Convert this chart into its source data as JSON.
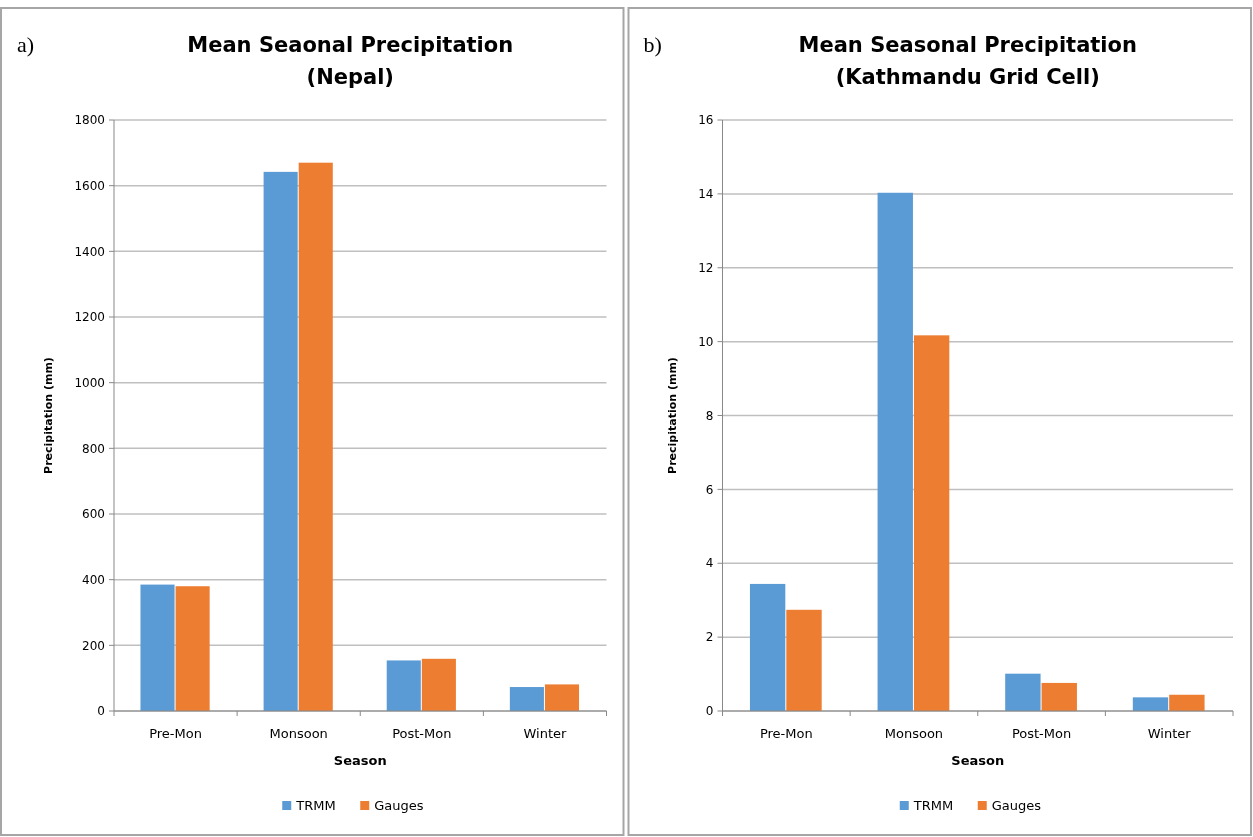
{
  "chart_data": [
    {
      "type": "bar",
      "title": "Mean Seaonal Precipitation\n(Nepal)",
      "xlabel": "Season",
      "ylabel": "Precipitation (mm)",
      "annotations": [
        "a)"
      ],
      "categories": [
        "Pre-Mon",
        "Monsoon",
        "Post-Mon",
        "Winter"
      ],
      "series": [
        {
          "name": "TRMM",
          "color": "#5b9bd5",
          "values": [
            385,
            1642,
            154,
            73
          ]
        },
        {
          "name": "Gauges",
          "color": "#ed7d31",
          "values": [
            380,
            1670,
            159,
            81
          ]
        }
      ],
      "ylim": [
        0,
        1800
      ],
      "yticks": [
        0,
        200,
        400,
        600,
        800,
        1000,
        1200,
        1400,
        1600,
        1800
      ],
      "grid": "y",
      "legend": "bottom"
    },
    {
      "type": "bar",
      "title": "Mean Seasonal Precipitation\n(Kathmandu Grid Cell)",
      "xlabel": "Season",
      "ylabel": "Precipitation (mm)",
      "annotations": [
        "b)"
      ],
      "categories": [
        "Pre-Mon",
        "Monsoon",
        "Post-Mon",
        "Winter"
      ],
      "series": [
        {
          "name": "TRMM",
          "color": "#5b9bd5",
          "values": [
            3.44,
            14.03,
            1.01,
            0.37
          ]
        },
        {
          "name": "Gauges",
          "color": "#ed7d31",
          "values": [
            2.74,
            10.17,
            0.76,
            0.44
          ]
        }
      ],
      "ylim": [
        0,
        16
      ],
      "yticks": [
        0,
        2,
        4,
        6,
        8,
        10,
        12,
        14,
        16
      ],
      "grid": "y",
      "legend": "bottom"
    }
  ]
}
